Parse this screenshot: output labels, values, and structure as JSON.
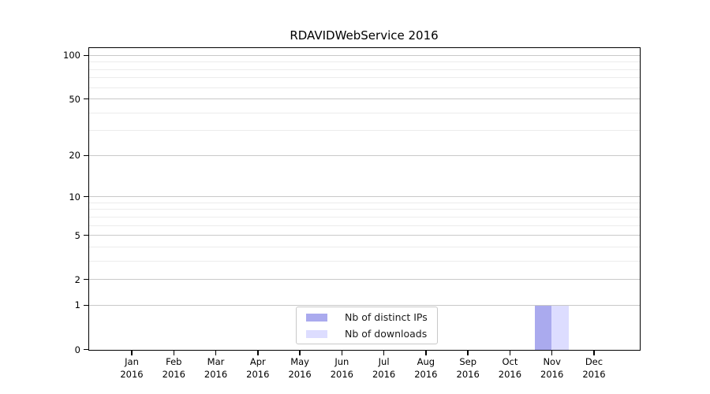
{
  "chart_data": {
    "type": "bar",
    "title": "RDAVIDWebService 2016",
    "year_label": "2016",
    "categories": [
      "Jan",
      "Feb",
      "Mar",
      "Apr",
      "May",
      "Jun",
      "Jul",
      "Aug",
      "Sep",
      "Oct",
      "Nov",
      "Dec"
    ],
    "series": [
      {
        "name": "Nb of distinct IPs",
        "color": "#aaaaee",
        "values": [
          0,
          0,
          0,
          0,
          0,
          0,
          0,
          0,
          0,
          0,
          1,
          0
        ]
      },
      {
        "name": "Nb of downloads",
        "color": "#ddddff",
        "values": [
          0,
          0,
          0,
          0,
          0,
          0,
          0,
          0,
          0,
          0,
          1,
          0
        ]
      }
    ],
    "yticks": [
      0,
      1,
      2,
      5,
      10,
      20,
      50,
      100
    ],
    "ylim": [
      0,
      100
    ],
    "yscale": "log1p",
    "grid": true,
    "legend_position": "lower center",
    "axis_color": "#000000",
    "grid_major_color": "#c9c9c9",
    "grid_minor_color": "#ececec"
  }
}
